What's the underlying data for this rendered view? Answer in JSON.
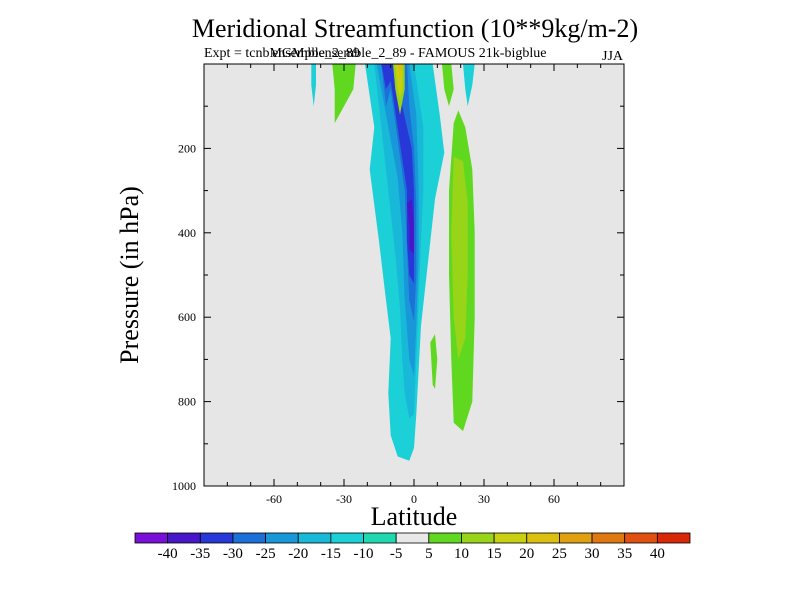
{
  "chart_data": {
    "type": "contour",
    "title": "Meridional Streamfunction (10**9kg/m-2)",
    "subtitle": "Expt = tcnbMGMpbensemble_2_89 - FAMOUS 21k-bigblue",
    "overlay_text": "ensemble_2_89",
    "season": "JJA",
    "xlabel": "Latitude",
    "ylabel": "Pressure (in hPa)",
    "xlim": [
      -90,
      90
    ],
    "ylim": [
      1000,
      0
    ],
    "x_ticks": [
      -60,
      -30,
      0,
      30,
      60
    ],
    "y_ticks": [
      200,
      400,
      600,
      800,
      1000
    ],
    "x_tick_labels": [
      "-60",
      "-30",
      "0",
      "30",
      "60"
    ],
    "y_tick_labels": [
      "200",
      "400",
      "600",
      "800",
      "1000"
    ],
    "background": "#e6e6e6",
    "regions": [
      {
        "level": "-10",
        "points": [
          [
            -21,
            0
          ],
          [
            -17,
            150
          ],
          [
            -19,
            250
          ],
          [
            -15,
            420
          ],
          [
            -12,
            560
          ],
          [
            -10,
            650
          ],
          [
            -11,
            780
          ],
          [
            -10,
            880
          ],
          [
            -7,
            930
          ],
          [
            -2,
            940
          ],
          [
            0,
            910
          ],
          [
            1,
            830
          ],
          [
            3,
            620
          ],
          [
            6,
            470
          ],
          [
            9,
            320
          ],
          [
            13,
            210
          ],
          [
            11,
            120
          ],
          [
            9,
            40
          ],
          [
            8,
            0
          ]
        ]
      },
      {
        "level": "-10",
        "points": [
          [
            -44,
            0
          ],
          [
            -44,
            50
          ],
          [
            -43,
            100
          ],
          [
            -42,
            50
          ],
          [
            -42,
            0
          ]
        ]
      },
      {
        "level": "-10",
        "points": [
          [
            21,
            0
          ],
          [
            22,
            60
          ],
          [
            23,
            100
          ],
          [
            25,
            50
          ],
          [
            26,
            0
          ]
        ]
      },
      {
        "level": "-15",
        "points": [
          [
            -17,
            0
          ],
          [
            -14,
            150
          ],
          [
            -11,
            300
          ],
          [
            -8,
            450
          ],
          [
            -6,
            580
          ],
          [
            -5,
            700
          ],
          [
            -4,
            780
          ],
          [
            -2,
            840
          ],
          [
            0,
            830
          ],
          [
            1,
            700
          ],
          [
            2,
            560
          ],
          [
            3,
            420
          ],
          [
            4,
            300
          ],
          [
            4,
            150
          ],
          [
            0,
            0
          ]
        ]
      },
      {
        "level": "-20",
        "points": [
          [
            -16,
            0
          ],
          [
            -12,
            120
          ],
          [
            -7,
            270
          ],
          [
            -5,
            400
          ],
          [
            -4,
            560
          ],
          [
            -2,
            700
          ],
          [
            0,
            740
          ],
          [
            1,
            620
          ],
          [
            2,
            450
          ],
          [
            2,
            300
          ],
          [
            1,
            120
          ],
          [
            -2,
            0
          ]
        ]
      },
      {
        "level": "-25",
        "points": [
          [
            -14,
            0
          ],
          [
            -12,
            100
          ],
          [
            -10,
            60
          ],
          [
            -4,
            300
          ],
          [
            -3,
            440
          ],
          [
            -2,
            560
          ],
          [
            0,
            610
          ],
          [
            1,
            500
          ],
          [
            1,
            330
          ],
          [
            0,
            200
          ],
          [
            -2,
            100
          ],
          [
            -3,
            0
          ]
        ]
      },
      {
        "level": "-30",
        "points": [
          [
            -14,
            0
          ],
          [
            -12,
            60
          ],
          [
            -10,
            40
          ],
          [
            -3,
            300
          ],
          [
            -3,
            420
          ],
          [
            -2,
            500
          ],
          [
            0,
            520
          ],
          [
            0,
            420
          ],
          [
            0,
            300
          ],
          [
            -1,
            200
          ],
          [
            -5,
            100
          ],
          [
            -8,
            0
          ]
        ]
      },
      {
        "level": "-35",
        "points": [
          [
            -3,
            330
          ],
          [
            -2,
            390
          ],
          [
            -2,
            440
          ],
          [
            0,
            450
          ],
          [
            0,
            380
          ],
          [
            -1,
            320
          ]
        ]
      },
      {
        "level": "5",
        "points": [
          [
            -35,
            0
          ],
          [
            -34,
            60
          ],
          [
            -34,
            140
          ],
          [
            -30,
            100
          ],
          [
            -26,
            60
          ],
          [
            -25,
            0
          ]
        ]
      },
      {
        "level": "5",
        "points": [
          [
            12,
            0
          ],
          [
            13,
            60
          ],
          [
            15,
            100
          ],
          [
            17,
            60
          ],
          [
            16,
            0
          ]
        ]
      },
      {
        "level": "5",
        "points": [
          [
            7,
            660
          ],
          [
            8,
            760
          ],
          [
            9,
            770
          ],
          [
            10,
            700
          ],
          [
            9,
            640
          ]
        ]
      },
      {
        "level": "5",
        "points": [
          [
            17,
            140
          ],
          [
            15,
            300
          ],
          [
            15,
            500
          ],
          [
            16,
            700
          ],
          [
            17,
            850
          ],
          [
            21,
            870
          ],
          [
            25,
            800
          ],
          [
            26,
            600
          ],
          [
            26,
            400
          ],
          [
            25,
            250
          ],
          [
            22,
            150
          ],
          [
            19,
            110
          ]
        ]
      },
      {
        "level": "10",
        "points": [
          [
            17,
            220
          ],
          [
            16,
            400
          ],
          [
            17,
            600
          ],
          [
            19,
            700
          ],
          [
            22,
            650
          ],
          [
            23,
            500
          ],
          [
            23,
            330
          ],
          [
            21,
            230
          ]
        ]
      },
      {
        "level": "10",
        "points": [
          [
            -9,
            0
          ],
          [
            -8,
            60
          ],
          [
            -6,
            120
          ],
          [
            -4,
            60
          ],
          [
            -4,
            0
          ]
        ]
      },
      {
        "level": "15",
        "points": [
          [
            -8,
            0
          ],
          [
            -7,
            60
          ],
          [
            -6,
            80
          ],
          [
            -5,
            60
          ],
          [
            -5,
            0
          ]
        ]
      },
      {
        "level": "20",
        "points": [
          [
            -7,
            0
          ],
          [
            -6,
            40
          ],
          [
            -5,
            0
          ]
        ]
      }
    ],
    "colorbar": {
      "boundaries": [
        -45,
        -40,
        -35,
        -30,
        -25,
        -20,
        -15,
        -10,
        -5,
        5,
        10,
        15,
        20,
        25,
        30,
        35,
        40,
        45
      ],
      "labels": [
        "-40",
        "-35",
        "-30",
        "-25",
        "-20",
        "-15",
        "-10",
        "-5",
        "5",
        "10",
        "15",
        "20",
        "25",
        "30",
        "35",
        "40"
      ],
      "colors": [
        "#7810d8",
        "#4818c8",
        "#2838d8",
        "#1c70d8",
        "#1898d8",
        "#18b8d8",
        "#1cd0d8",
        "#20d8b0",
        "#e8e8e8",
        "#60d820",
        "#98d418",
        "#c8d010",
        "#dcc010",
        "#e0a010",
        "#e07810",
        "#e05010",
        "#d82808"
      ],
      "color_map": {
        "-40": "#7810d8",
        "-35": "#4818c8",
        "-30": "#2838d8",
        "-25": "#1c70d8",
        "-20": "#1898d8",
        "-15": "#18b8d8",
        "-10": "#1cd0d8",
        "-5": "#20d8b0",
        "0": "#e8e8e8",
        "5": "#60d820",
        "10": "#98d418",
        "15": "#c8d010",
        "20": "#dcc010",
        "25": "#e0a010",
        "30": "#e07810",
        "35": "#e05010",
        "40": "#d82808"
      }
    }
  }
}
